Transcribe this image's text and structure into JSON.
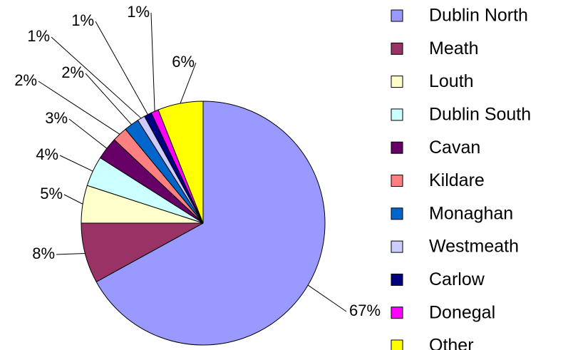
{
  "chart_data": {
    "type": "pie",
    "categories": [
      "Dublin North",
      "Meath",
      "Louth",
      "Dublin South",
      "Cavan",
      "Kildare",
      "Monaghan",
      "Westmeath",
      "Carlow",
      "Donegal",
      "Other"
    ],
    "values": [
      67,
      8,
      5,
      4,
      3,
      2,
      2,
      1,
      1,
      1,
      6
    ],
    "value_labels": [
      "67%",
      "8%",
      "5%",
      "4%",
      "3%",
      "2%",
      "2%",
      "1%",
      "1%",
      "1%",
      "6%"
    ],
    "colors": [
      "#9999ff",
      "#993366",
      "#ffffcc",
      "#ccffff",
      "#660066",
      "#ff8080",
      "#0066cc",
      "#ccccff",
      "#000080",
      "#ff00ff",
      "#ffff00"
    ],
    "legend": "right"
  }
}
